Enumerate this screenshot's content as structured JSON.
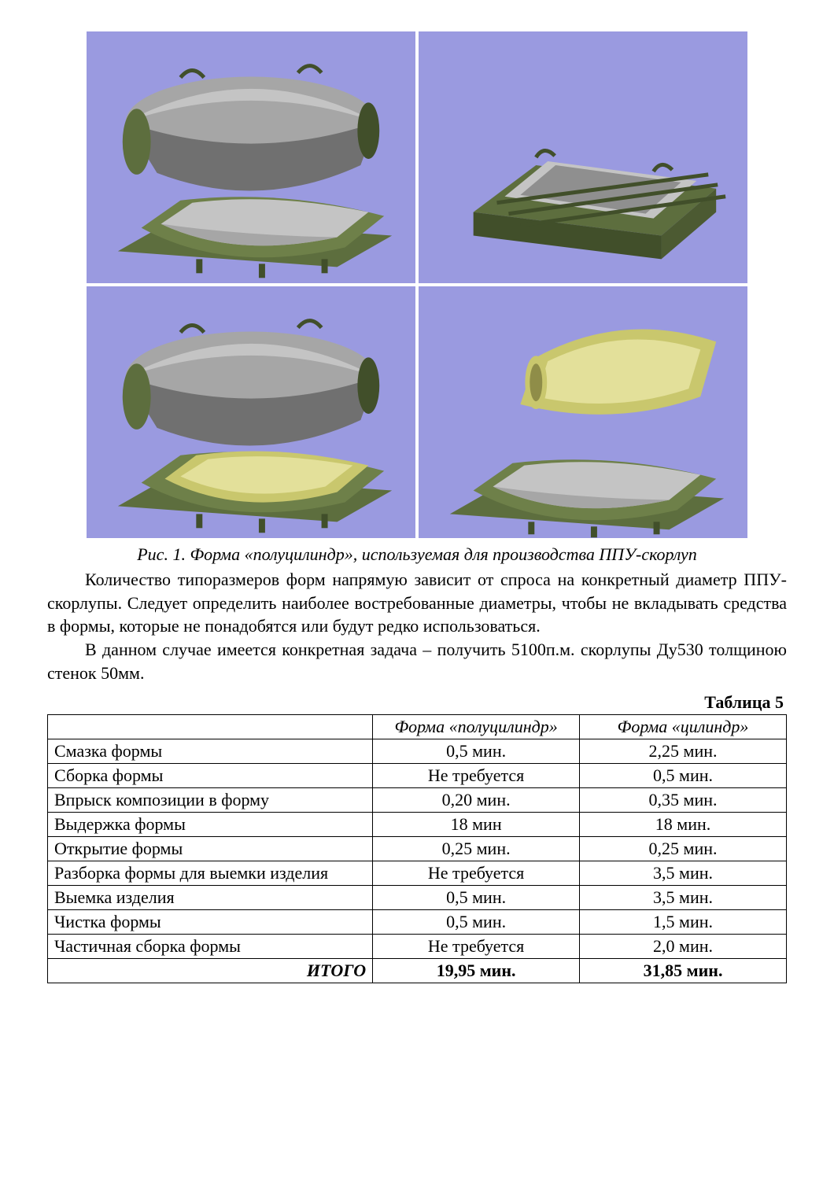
{
  "figure": {
    "background": "#9a9ae0",
    "mold_body": "#5d6e3e",
    "mold_body_light": "#6e8049",
    "mold_body_dark": "#414f2a",
    "cylinder": "#a6a6a6",
    "cylinder_light": "#c4c4c4",
    "cylinder_dark": "#707070",
    "shell_outer": "#c9c76d",
    "shell_inner": "#e3e09a",
    "caption": "Рис. 1. Форма «полуцилиндр», используемая для производства ППУ-скорлуп"
  },
  "paragraphs": {
    "p1": "Количество типоразмеров форм напрямую зависит от спроса на конкретный диаметр ППУ-скорлупы. Следует определить наиболее востребованные диаметры, чтобы не вкладывать средства в формы, которые не понадобятся или будут редко использоваться.",
    "p2": "В данном случае имеется конкретная задача – получить 5100п.м. скорлупы Ду530 толщиною стенок 50мм."
  },
  "table": {
    "label": "Таблица 5",
    "headers": {
      "c0": "",
      "c1": "Форма «полуцилиндр»",
      "c2": "Форма «цилиндр»"
    },
    "rows": [
      {
        "op": "Смазка формы",
        "a": "0,5 мин.",
        "b": "2,25 мин."
      },
      {
        "op": "Сборка формы",
        "a": "Не требуется",
        "b": "0,5 мин."
      },
      {
        "op": "Впрыск композиции в форму",
        "a": "0,20 мин.",
        "b": "0,35 мин."
      },
      {
        "op": "Выдержка формы",
        "a": "18 мин",
        "b": "18 мин."
      },
      {
        "op": "Открытие формы",
        "a": "0,25 мин.",
        "b": "0,25 мин."
      },
      {
        "op": "Разборка формы для выемки изделия",
        "a": "Не требуется",
        "b": "3,5 мин."
      },
      {
        "op": "Выемка изделия",
        "a": "0,5 мин.",
        "b": "3,5 мин."
      },
      {
        "op": "Чистка формы",
        "a": "0,5 мин.",
        "b": "1,5 мин."
      },
      {
        "op": "Частичная сборка формы",
        "a": "Не требуется",
        "b": "2,0 мин."
      }
    ],
    "total": {
      "op": "ИТОГО",
      "a": "19,95 мин.",
      "b": "31,85 мин."
    }
  },
  "style": {
    "cell_w_op": "44%",
    "cell_w_a": "28%",
    "cell_w_b": "28%"
  }
}
